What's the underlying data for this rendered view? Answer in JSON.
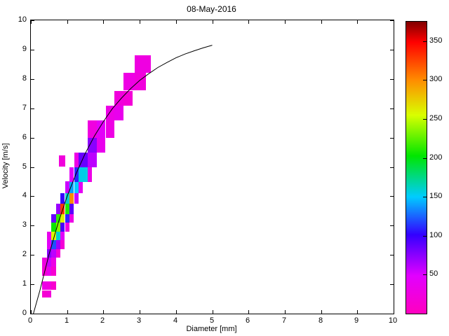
{
  "chart_data": {
    "type": "heatmap",
    "title": "08-May-2016",
    "xlabel": "Diameter [mm]",
    "ylabel": "Velocity [m/s]",
    "xlim": [
      0,
      10
    ],
    "ylim": [
      0,
      10
    ],
    "xticks": [
      0,
      1,
      2,
      3,
      4,
      5,
      6,
      7,
      8,
      9,
      10
    ],
    "yticks": [
      0,
      1,
      2,
      3,
      4,
      5,
      6,
      7,
      8,
      9,
      10
    ],
    "grid": false,
    "colorbar": {
      "lim": [
        0,
        375
      ],
      "ticks": [
        50,
        100,
        150,
        200,
        250,
        300,
        350
      ],
      "stops": [
        [
          0.0,
          "#ff00bf"
        ],
        [
          0.13,
          "#e100ff"
        ],
        [
          0.27,
          "#3300ff"
        ],
        [
          0.4,
          "#00ccff"
        ],
        [
          0.54,
          "#00e600"
        ],
        [
          0.68,
          "#d9ff00"
        ],
        [
          0.8,
          "#ff8c00"
        ],
        [
          0.93,
          "#ff0000"
        ],
        [
          1.0,
          "#800000"
        ]
      ]
    },
    "cell_format": [
      "diameter_mm",
      "velocity_ms",
      "width_mm",
      "height_ms",
      "count"
    ],
    "cells": [
      [
        0.31,
        0.55,
        0.125,
        0.25,
        15
      ],
      [
        0.44,
        0.55,
        0.125,
        0.25,
        20
      ],
      [
        0.31,
        0.8,
        0.125,
        0.3,
        30
      ],
      [
        0.44,
        0.8,
        0.125,
        0.3,
        25
      ],
      [
        0.56,
        0.8,
        0.125,
        0.3,
        12
      ],
      [
        0.31,
        1.3,
        0.125,
        0.3,
        18
      ],
      [
        0.44,
        1.3,
        0.125,
        0.3,
        35
      ],
      [
        0.56,
        1.3,
        0.125,
        0.3,
        15
      ],
      [
        0.31,
        1.6,
        0.125,
        0.3,
        25
      ],
      [
        0.44,
        1.6,
        0.125,
        0.3,
        55
      ],
      [
        0.56,
        1.6,
        0.125,
        0.3,
        30
      ],
      [
        0.44,
        1.9,
        0.125,
        0.3,
        75
      ],
      [
        0.56,
        1.9,
        0.125,
        0.3,
        60
      ],
      [
        0.69,
        1.9,
        0.125,
        0.3,
        20
      ],
      [
        0.44,
        2.2,
        0.125,
        0.3,
        45
      ],
      [
        0.56,
        2.2,
        0.125,
        0.3,
        120
      ],
      [
        0.69,
        2.2,
        0.125,
        0.3,
        70
      ],
      [
        0.81,
        2.2,
        0.125,
        0.3,
        18
      ],
      [
        0.44,
        2.5,
        0.125,
        0.3,
        35
      ],
      [
        0.56,
        2.5,
        0.125,
        0.3,
        255
      ],
      [
        0.69,
        2.5,
        0.125,
        0.3,
        160
      ],
      [
        0.81,
        2.5,
        0.125,
        0.3,
        45
      ],
      [
        0.56,
        2.8,
        0.125,
        0.3,
        205
      ],
      [
        0.69,
        2.8,
        0.125,
        0.3,
        235
      ],
      [
        0.81,
        2.8,
        0.125,
        0.3,
        95
      ],
      [
        0.94,
        2.8,
        0.125,
        0.3,
        25
      ],
      [
        0.56,
        3.1,
        0.125,
        0.3,
        85
      ],
      [
        0.69,
        3.1,
        0.125,
        0.3,
        215
      ],
      [
        0.81,
        3.1,
        0.125,
        0.3,
        260
      ],
      [
        0.94,
        3.1,
        0.125,
        0.3,
        110
      ],
      [
        1.06,
        3.1,
        0.125,
        0.3,
        30
      ],
      [
        0.69,
        3.4,
        0.125,
        0.35,
        70
      ],
      [
        0.81,
        3.4,
        0.125,
        0.35,
        330
      ],
      [
        0.94,
        3.4,
        0.125,
        0.35,
        210
      ],
      [
        1.06,
        3.4,
        0.125,
        0.35,
        90
      ],
      [
        0.81,
        3.75,
        0.125,
        0.35,
        100
      ],
      [
        0.94,
        3.75,
        0.125,
        0.35,
        160
      ],
      [
        1.06,
        3.75,
        0.125,
        0.35,
        300
      ],
      [
        1.19,
        3.75,
        0.125,
        0.35,
        55
      ],
      [
        0.94,
        4.1,
        0.125,
        0.4,
        55
      ],
      [
        1.06,
        4.1,
        0.125,
        0.4,
        140
      ],
      [
        1.19,
        4.1,
        0.125,
        0.4,
        150
      ],
      [
        1.31,
        4.1,
        0.125,
        0.4,
        40
      ],
      [
        1.06,
        4.5,
        0.125,
        0.5,
        45
      ],
      [
        1.19,
        4.5,
        0.125,
        0.5,
        110
      ],
      [
        1.31,
        4.5,
        0.25,
        0.5,
        155
      ],
      [
        1.56,
        4.5,
        0.125,
        0.5,
        30
      ],
      [
        0.78,
        5.0,
        0.16,
        0.4,
        22
      ],
      [
        1.19,
        5.0,
        0.125,
        0.5,
        30
      ],
      [
        1.31,
        5.0,
        0.25,
        0.5,
        85
      ],
      [
        1.56,
        5.0,
        0.25,
        0.5,
        60
      ],
      [
        1.56,
        5.5,
        0.25,
        0.5,
        75
      ],
      [
        1.81,
        5.5,
        0.25,
        0.5,
        35
      ],
      [
        1.56,
        6.0,
        0.25,
        0.6,
        25
      ],
      [
        1.81,
        6.0,
        0.25,
        0.6,
        45
      ],
      [
        2.06,
        6.0,
        0.25,
        0.6,
        28
      ],
      [
        2.06,
        6.6,
        0.25,
        0.5,
        30
      ],
      [
        2.31,
        6.6,
        0.25,
        0.5,
        35
      ],
      [
        2.31,
        7.1,
        0.25,
        0.5,
        22
      ],
      [
        2.56,
        7.1,
        0.25,
        0.5,
        18
      ],
      [
        2.56,
        7.6,
        0.31,
        0.6,
        28
      ],
      [
        2.87,
        7.6,
        0.31,
        0.6,
        22
      ],
      [
        2.87,
        8.2,
        0.44,
        0.6,
        26
      ]
    ],
    "curve": {
      "name": "terminal-fall-velocity-curve",
      "color": "#000000",
      "points": [
        [
          0.07,
          0.0
        ],
        [
          0.25,
          0.79
        ],
        [
          0.5,
          2.02
        ],
        [
          0.75,
          3.08
        ],
        [
          1.0,
          4.0
        ],
        [
          1.25,
          4.78
        ],
        [
          1.5,
          5.46
        ],
        [
          1.75,
          6.05
        ],
        [
          2.0,
          6.55
        ],
        [
          2.25,
          6.99
        ],
        [
          2.5,
          7.35
        ],
        [
          2.75,
          7.67
        ],
        [
          3.0,
          7.95
        ],
        [
          3.25,
          8.18
        ],
        [
          3.5,
          8.39
        ],
        [
          3.75,
          8.56
        ],
        [
          4.0,
          8.72
        ],
        [
          4.25,
          8.85
        ],
        [
          4.5,
          8.96
        ],
        [
          4.75,
          9.06
        ],
        [
          5.0,
          9.15
        ]
      ]
    }
  }
}
